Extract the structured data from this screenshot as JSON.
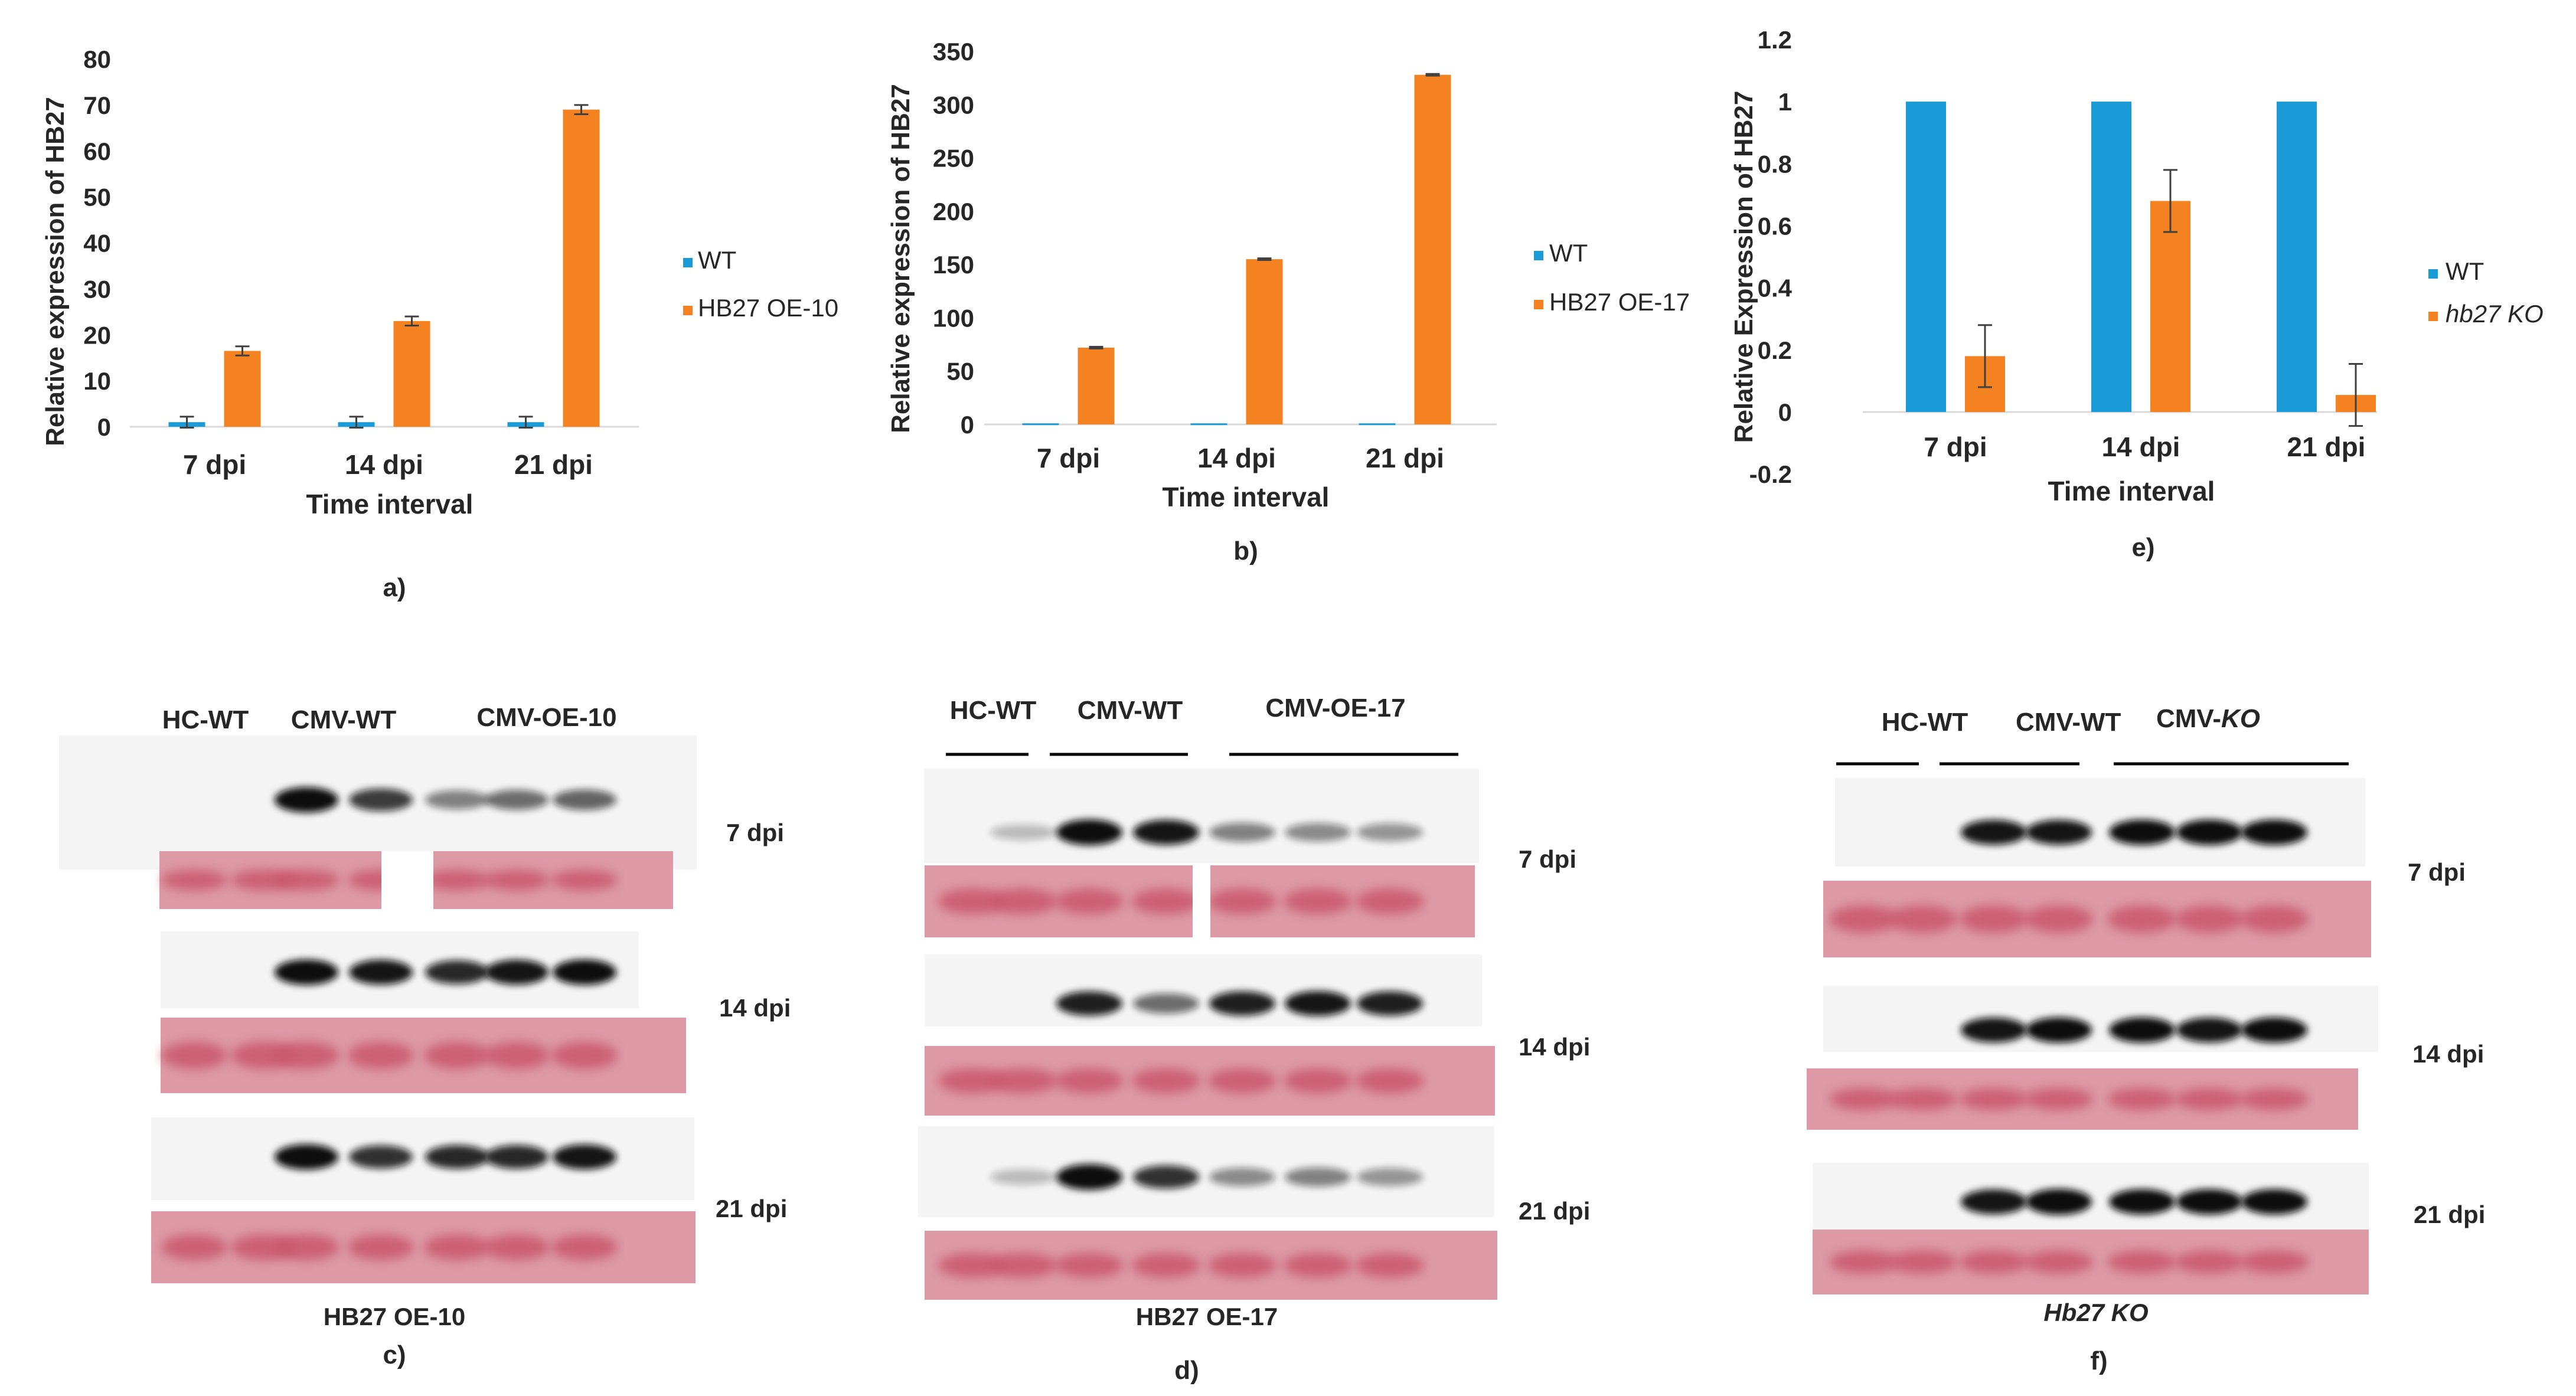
{
  "colors": {
    "wt": "#1a9ad6",
    "treatment": "#f58220",
    "axis": "#d9d9d9",
    "error_bar": "#404040",
    "text": "#262626",
    "band_dark": "#101010",
    "ponceau_bg": "#dd9aa6",
    "ponceau_band": "#c9566b"
  },
  "chart_data": [
    {
      "type": "bar",
      "panel": "a)",
      "title": "",
      "categories": [
        "7 dpi",
        "14 dpi",
        "21 dpi"
      ],
      "series": [
        {
          "name": "WT",
          "values": [
            1,
            1,
            1
          ],
          "errors": [
            1.2,
            1.2,
            1.2
          ]
        },
        {
          "name": "HB27 OE-10",
          "values": [
            16.5,
            23,
            69
          ],
          "errors": [
            1.0,
            1.0,
            1.0
          ]
        }
      ],
      "xlabel": "Time interval",
      "ylabel": "Relative expression of HB27",
      "ylim": [
        0,
        80
      ],
      "yticks": [
        0,
        10,
        20,
        30,
        40,
        50,
        60,
        70,
        80
      ],
      "legend": "right",
      "grid": false
    },
    {
      "type": "bar",
      "panel": "b)",
      "title": "",
      "categories": [
        "7 dpi",
        "14 dpi",
        "21 dpi"
      ],
      "series": [
        {
          "name": "WT",
          "values": [
            1,
            1,
            1
          ],
          "errors": [
            0,
            0,
            0
          ]
        },
        {
          "name": "HB27 OE-17",
          "values": [
            72,
            155,
            328
          ],
          "errors": [
            0.8,
            0.8,
            0.8
          ]
        }
      ],
      "xlabel": "Time interval",
      "ylabel": "Relative expression of HB27",
      "ylim": [
        0,
        350
      ],
      "yticks": [
        0,
        50,
        100,
        150,
        200,
        250,
        300,
        350
      ],
      "legend": "right",
      "grid": false
    },
    {
      "type": "bar",
      "panel": "e)",
      "title": "",
      "categories": [
        "7 dpi",
        "14 dpi",
        "21 dpi"
      ],
      "series": [
        {
          "name": "WT",
          "values": [
            1,
            1,
            1
          ],
          "errors": [
            0,
            0,
            0
          ]
        },
        {
          "name": "hb27 KO",
          "values": [
            0.18,
            0.68,
            0.055
          ],
          "errors": [
            0.1,
            0.1,
            0.1
          ]
        }
      ],
      "xlabel": "Time interval",
      "ylabel": "Relative Expression of HB27",
      "ylim": [
        -0.2,
        1.2
      ],
      "yticks": [
        -0.2,
        0,
        0.2,
        0.4,
        0.6,
        0.8,
        1,
        1.2
      ],
      "legend": "right",
      "grid": false
    }
  ],
  "blots": [
    {
      "panel": "c)",
      "caption": "HB27 OE-10",
      "groups": [
        "HC-WT",
        "CMV-WT",
        "CMV-OE-10"
      ],
      "time_labels": [
        "7 dpi",
        "14 dpi",
        "21 dpi"
      ],
      "band_intensity": [
        [
          0,
          0,
          0.95,
          0.7,
          0.35,
          0.45,
          0.5
        ],
        [
          0,
          0,
          0.95,
          0.9,
          0.8,
          0.9,
          0.95
        ],
        [
          0,
          0,
          0.95,
          0.75,
          0.8,
          0.8,
          0.9
        ]
      ]
    },
    {
      "panel": "d)",
      "caption": "HB27 OE-17",
      "groups": [
        "HC-WT",
        "CMV-WT",
        "CMV-OE-17"
      ],
      "time_labels": [
        "7 dpi",
        "14 dpi",
        "21 dpi"
      ],
      "band_intensity": [
        [
          0,
          0.05,
          0.98,
          0.9,
          0.35,
          0.3,
          0.25
        ],
        [
          0,
          0,
          0.85,
          0.45,
          0.85,
          0.9,
          0.85
        ],
        [
          0,
          0.05,
          0.98,
          0.75,
          0.3,
          0.35,
          0.25
        ]
      ]
    },
    {
      "panel": "f)",
      "caption": "Hb27 KO",
      "groups": [
        "HC-WT",
        "CMV-WT",
        "CMV-KO"
      ],
      "time_labels": [
        "7 dpi",
        "14 dpi",
        "21 dpi"
      ],
      "band_intensity": [
        [
          0,
          0,
          0.9,
          0.9,
          0.95,
          0.95,
          0.95
        ],
        [
          0,
          0,
          0.9,
          0.95,
          0.95,
          0.9,
          0.95
        ],
        [
          0,
          0,
          0.9,
          1.0,
          0.95,
          0.95,
          0.95
        ]
      ]
    }
  ]
}
